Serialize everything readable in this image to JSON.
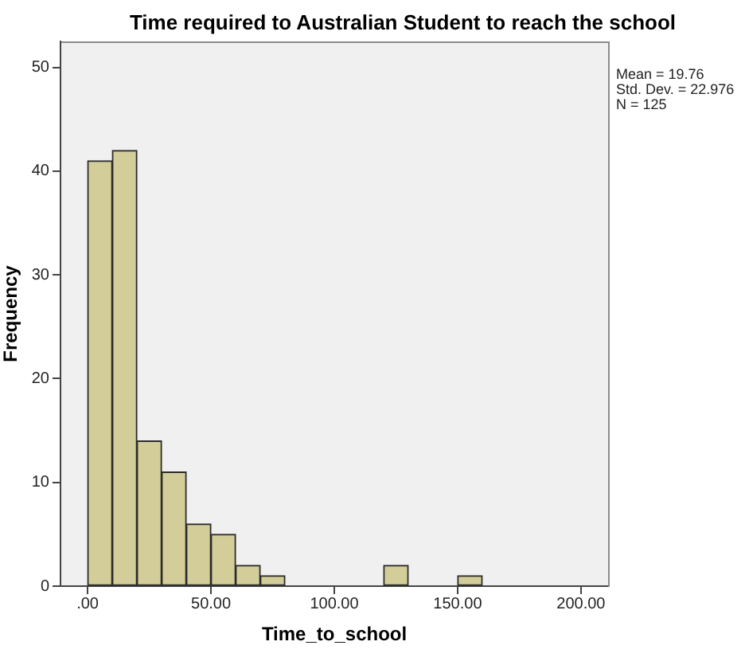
{
  "chart_data": {
    "type": "histogram",
    "title": "Time required to Australian Student to reach the school",
    "xlabel": "Time_to_school",
    "ylabel": "Frequency",
    "bins": [
      0,
      10,
      20,
      30,
      40,
      50,
      60,
      70,
      80,
      90,
      100,
      110,
      120,
      130,
      140,
      150,
      160
    ],
    "values": [
      41,
      42,
      14,
      11,
      6,
      5,
      2,
      1,
      0,
      0,
      0,
      0,
      2,
      0,
      0,
      1
    ],
    "color": "#d3ce99",
    "xlim": [
      -11,
      211
    ],
    "xticks": [
      {
        "value": 0,
        "label": ".00"
      },
      {
        "value": 50,
        "label": "50.00"
      },
      {
        "value": 100,
        "label": "100.00"
      },
      {
        "value": 150,
        "label": "150.00"
      },
      {
        "value": 200,
        "label": "200.00"
      }
    ],
    "ylim": [
      0,
      52.5
    ],
    "yticks": [
      0,
      10,
      20,
      30,
      40,
      50
    ],
    "grid": false,
    "legend": false,
    "annotations": [
      "Mean = 19.76",
      "Std. Dev. = 22.976",
      "N = 125"
    ]
  }
}
